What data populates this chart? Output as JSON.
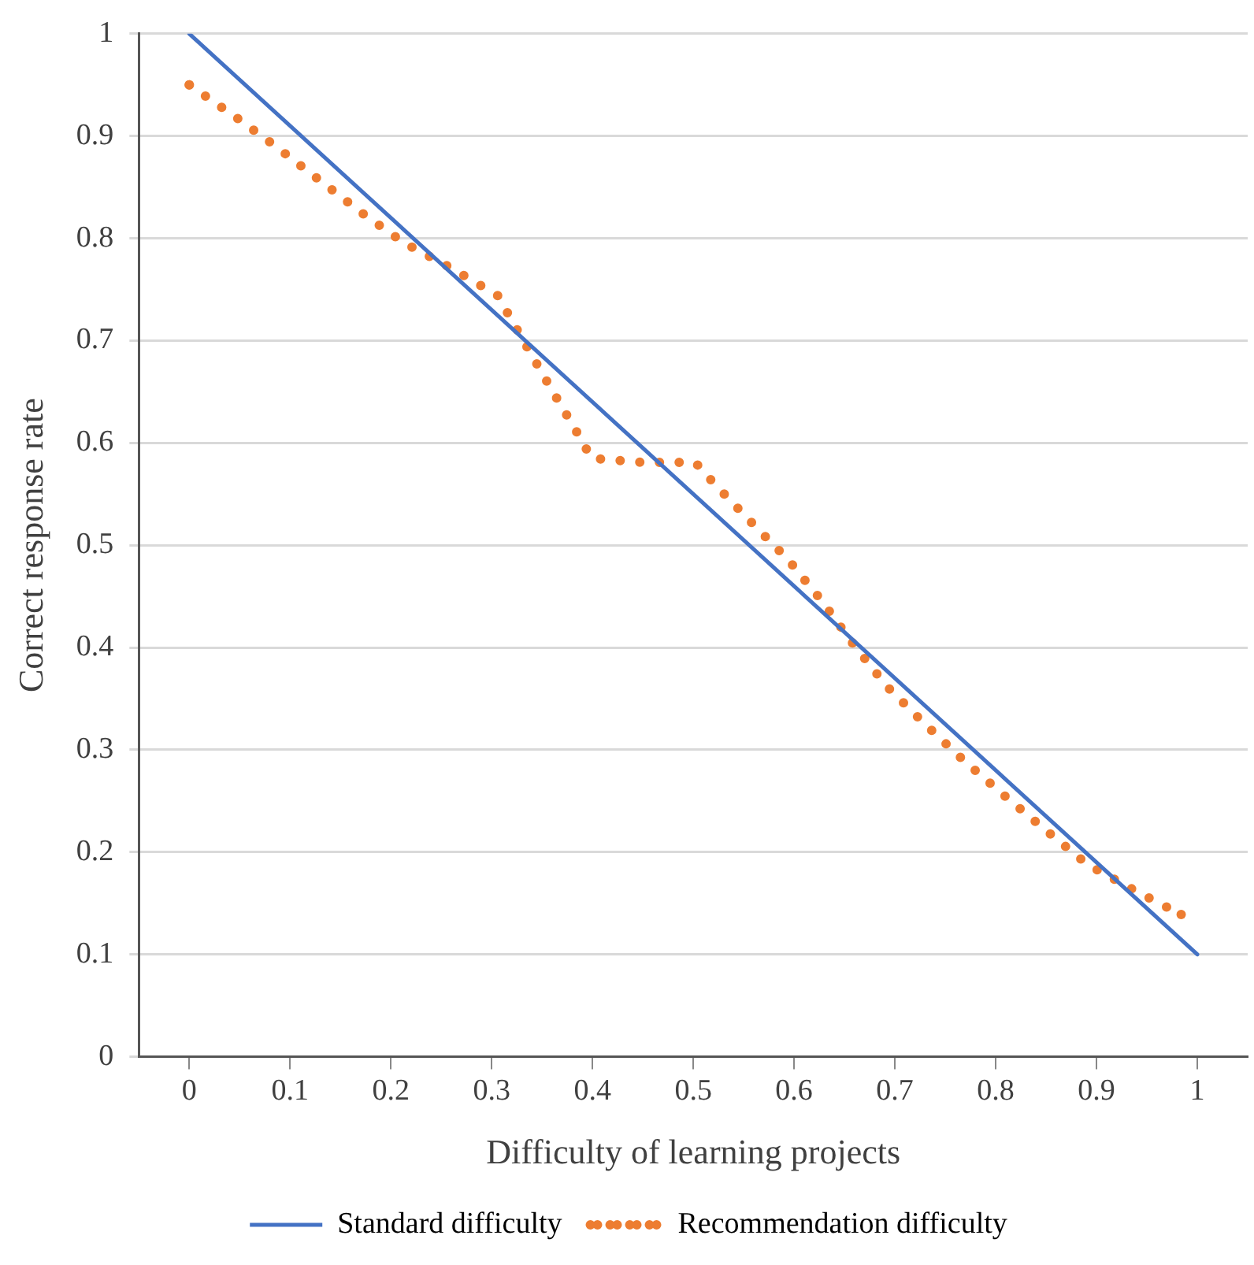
{
  "chart_data": {
    "type": "line",
    "xlabel": "Difficulty of learning projects",
    "ylabel": "Correct response rate",
    "xlim": [
      -0.05,
      1.05
    ],
    "xticks": [
      0,
      0.1,
      0.2,
      0.3,
      0.4,
      0.5,
      0.6,
      0.7,
      0.8,
      0.9,
      1
    ],
    "ylim": [
      0,
      1
    ],
    "yticks": [
      0,
      0.1,
      0.2,
      0.3,
      0.4,
      0.5,
      0.6,
      0.7,
      0.8,
      0.9,
      1
    ],
    "grid": "y",
    "legend": "bottom",
    "marker": "none",
    "series": [
      {
        "name": "Standard difficulty",
        "color": "#4472c4",
        "line_style": "solid",
        "x": [
          0,
          1
        ],
        "values": [
          1,
          0.1
        ]
      },
      {
        "name": "Recommendation difficulty",
        "color": "#ed7d31",
        "line_style": "dotted",
        "x": [
          0,
          0.044,
          0.087,
          0.129,
          0.171,
          0.214,
          0.26,
          0.306,
          0.332,
          0.359,
          0.386,
          0.399,
          0.45,
          0.502,
          0.52,
          0.557,
          0.594,
          0.628,
          0.659,
          0.692,
          0.73,
          0.769,
          0.809,
          0.849,
          0.891,
          0.937,
          0.984
        ],
        "values": [
          0.95,
          0.92,
          0.889,
          0.857,
          0.825,
          0.795,
          0.771,
          0.744,
          0.699,
          0.653,
          0.608,
          0.585,
          0.581,
          0.581,
          0.561,
          0.523,
          0.486,
          0.445,
          0.403,
          0.362,
          0.325,
          0.289,
          0.255,
          0.222,
          0.188,
          0.163,
          0.139
        ]
      }
    ]
  }
}
